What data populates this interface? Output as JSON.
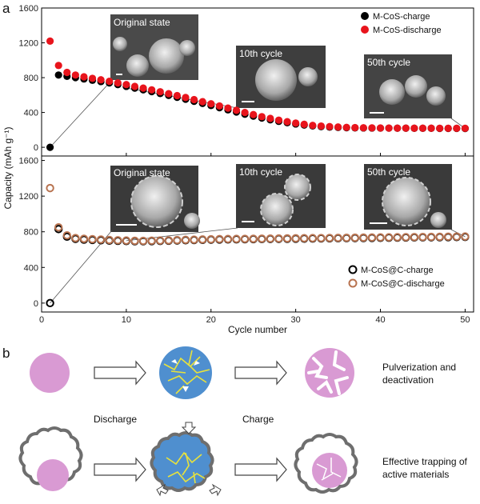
{
  "panel_labels": {
    "a": "a",
    "b": "b"
  },
  "chart_data": [
    {
      "type": "scatter",
      "title": "",
      "xlabel": "Cycle number",
      "ylabel": "Capacity (mAh g⁻¹)",
      "xlim": [
        0,
        51
      ],
      "ylim": [
        -100,
        1600
      ],
      "x_ticks": [
        0,
        10,
        20,
        30,
        40,
        50
      ],
      "y_ticks": [
        0,
        400,
        800,
        1200,
        1600
      ],
      "legend_position": "top-right",
      "series": [
        {
          "name": "M-CoS-charge",
          "marker": "filled-circle",
          "color": "#000000",
          "values": [
            0,
            830,
            815,
            800,
            785,
            770,
            755,
            740,
            720,
            700,
            680,
            660,
            640,
            618,
            596,
            574,
            552,
            528,
            504,
            480,
            455,
            430,
            405,
            380,
            358,
            336,
            316,
            298,
            282,
            268,
            256,
            246,
            238,
            232,
            228,
            225,
            223,
            222,
            221,
            220,
            220,
            219,
            219,
            218,
            218,
            218,
            217,
            217,
            217,
            216
          ]
        },
        {
          "name": "M-CoS-discharge",
          "marker": "filled-circle",
          "color": "#e8141c",
          "values": [
            1220,
            940,
            860,
            830,
            810,
            792,
            775,
            758,
            740,
            720,
            700,
            680,
            660,
            638,
            616,
            594,
            572,
            548,
            524,
            500,
            475,
            450,
            425,
            400,
            376,
            352,
            332,
            312,
            294,
            278,
            264,
            252,
            244,
            238,
            233,
            229,
            226,
            224,
            223,
            222,
            221,
            220,
            220,
            219,
            219,
            219,
            218,
            218,
            218,
            218
          ]
        }
      ],
      "insets": [
        {
          "label": "Original state",
          "cycle": 1
        },
        {
          "label": "10th cycle",
          "cycle": 10
        },
        {
          "label": "50th cycle",
          "cycle": 50
        }
      ]
    },
    {
      "type": "scatter",
      "title": "",
      "xlabel": "Cycle number",
      "ylabel": "Capacity (mAh g⁻¹)",
      "xlim": [
        0,
        51
      ],
      "ylim": [
        -100,
        1650
      ],
      "x_ticks": [
        0,
        10,
        20,
        30,
        40,
        50
      ],
      "y_ticks": [
        0,
        400,
        800,
        1200,
        1600
      ],
      "legend_position": "bottom-right",
      "series": [
        {
          "name": "M-CoS@C-charge",
          "marker": "open-circle",
          "color": "#000000",
          "values": [
            0,
            830,
            745,
            720,
            712,
            708,
            705,
            700,
            698,
            696,
            694,
            694,
            695,
            697,
            699,
            702,
            705,
            707,
            709,
            711,
            713,
            714,
            715,
            716,
            717,
            718,
            719,
            720,
            721,
            722,
            723,
            724,
            725,
            726,
            727,
            728,
            729,
            730,
            731,
            732,
            733,
            734,
            735,
            736,
            737,
            738,
            739,
            740,
            741,
            742
          ]
        },
        {
          "name": "M-CoS@C-discharge",
          "marker": "open-circle",
          "color": "#b87350",
          "values": [
            1290,
            850,
            760,
            730,
            722,
            717,
            713,
            708,
            705,
            702,
            699,
            698,
            700,
            702,
            704,
            707,
            710,
            712,
            714,
            716,
            718,
            719,
            720,
            721,
            722,
            723,
            724,
            725,
            726,
            727,
            728,
            729,
            730,
            731,
            732,
            733,
            734,
            735,
            736,
            737,
            738,
            739,
            740,
            741,
            742,
            743,
            744,
            745,
            746,
            747
          ]
        }
      ],
      "insets": [
        {
          "label": "Original state",
          "cycle": 1
        },
        {
          "label": "10th cycle",
          "cycle": 10
        },
        {
          "label": "50th cycle",
          "cycle": 50
        }
      ]
    }
  ],
  "diagram": {
    "discharge_label": "Discharge",
    "charge_label": "Charge",
    "row1_result": [
      "Pulverization and",
      "deactivation"
    ],
    "row2_result": [
      "Effective trapping of",
      "active materials"
    ]
  }
}
